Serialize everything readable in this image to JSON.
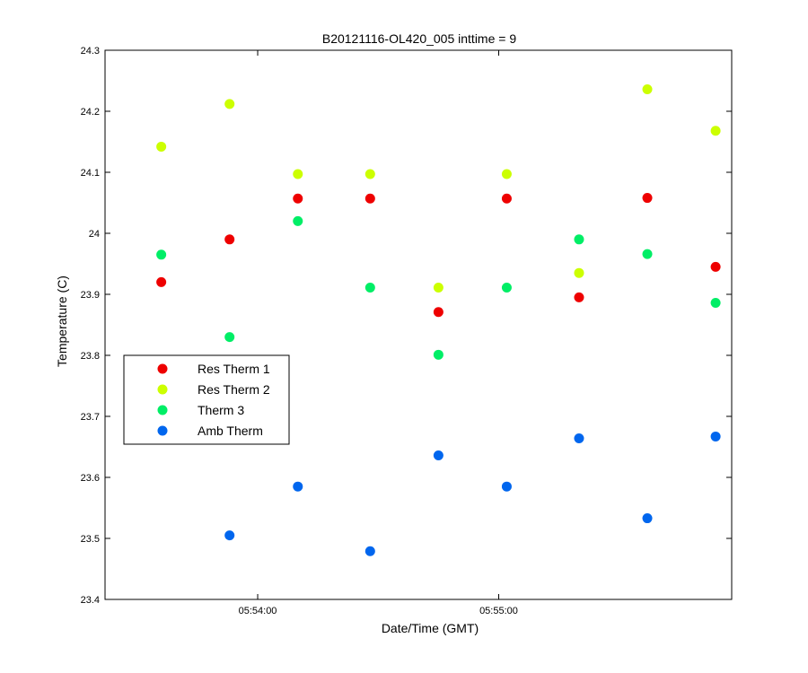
{
  "chart_data": {
    "type": "scatter",
    "title": "B20121116-OL420_005 inttime = 9",
    "xlabel": "Date/Time (GMT)",
    "ylabel": "Temperature (C)",
    "xlim": [
      "05:53:22",
      "05:55:58"
    ],
    "ylim": [
      23.4,
      24.3
    ],
    "x_ticks": [
      "05:54:00",
      "05:55:00"
    ],
    "y_ticks": [
      "23.4",
      "23.5",
      "23.6",
      "23.7",
      "23.8",
      "23.9",
      "24",
      "24.1",
      "24.2",
      "24.3"
    ],
    "grid": false,
    "legend_position": "left-middle",
    "x": [
      "05:53:36",
      "05:53:53",
      "05:54:10",
      "05:54:28",
      "05:54:45",
      "05:55:02",
      "05:55:20",
      "05:55:37",
      "05:55:54"
    ],
    "series": [
      {
        "name": "Res Therm 1",
        "color": "#ee0000",
        "values": [
          23.92,
          23.99,
          24.057,
          24.057,
          23.871,
          24.057,
          23.895,
          24.058,
          23.945
        ]
      },
      {
        "name": "Res Therm 2",
        "color": "#ccff00",
        "values": [
          24.142,
          24.212,
          24.097,
          24.097,
          23.911,
          24.097,
          23.935,
          24.236,
          24.168
        ]
      },
      {
        "name": "Therm 3",
        "color": "#00ee66",
        "values": [
          23.965,
          23.83,
          24.02,
          23.911,
          23.801,
          23.911,
          23.99,
          23.966,
          23.886
        ]
      },
      {
        "name": "Amb Therm",
        "color": "#0066ee",
        "values": [
          null,
          23.505,
          23.585,
          23.479,
          23.636,
          23.585,
          23.664,
          23.533,
          23.667
        ]
      }
    ]
  }
}
